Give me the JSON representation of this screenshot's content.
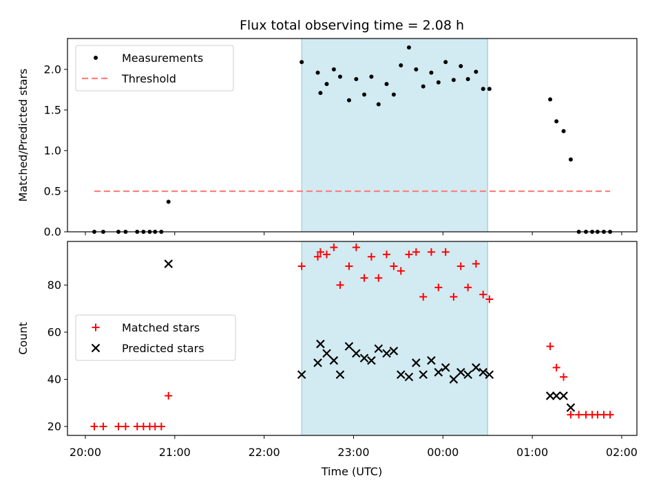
{
  "chart_data": {
    "title": "Flux total observing time = 2.08 h",
    "xlabel": "Time (UTC)",
    "xticks": [
      "20:00",
      "21:00",
      "22:00",
      "23:00",
      "00:00",
      "01:00",
      "02:00"
    ],
    "xrange_hours": [
      19.8,
      26.17
    ],
    "highlight_span_hours": [
      22.42,
      24.5
    ],
    "highlight_color": "#add8e6",
    "panels": [
      {
        "type": "scatter",
        "ylabel": "Matched/Predicted stars",
        "ylim": [
          0,
          2.38
        ],
        "yticks": [
          0.0,
          0.5,
          1.0,
          1.5,
          2.0
        ],
        "yticklabels": [
          "0.0",
          "0.5",
          "1.0",
          "1.5",
          "2.0"
        ],
        "legend_position": "upper left",
        "series": [
          {
            "name": "Measurements",
            "marker": "dot",
            "color": "#000000",
            "x": [
              20.1,
              20.2,
              20.37,
              20.45,
              20.58,
              20.65,
              20.72,
              20.78,
              20.85,
              20.93,
              22.42,
              22.6,
              22.63,
              22.7,
              22.78,
              22.85,
              22.95,
              23.03,
              23.12,
              23.2,
              23.28,
              23.37,
              23.45,
              23.53,
              23.62,
              23.7,
              23.78,
              23.87,
              23.95,
              24.03,
              24.12,
              24.2,
              24.28,
              24.37,
              24.45,
              24.52,
              25.2,
              25.27,
              25.35,
              25.43,
              25.52,
              25.6,
              25.67,
              25.73,
              25.8,
              25.87
            ],
            "y": [
              0,
              0,
              0,
              0,
              0,
              0,
              0,
              0,
              0,
              0.37,
              2.09,
              1.96,
              1.71,
              1.82,
              2.0,
              1.91,
              1.62,
              1.88,
              1.69,
              1.91,
              1.57,
              1.82,
              1.69,
              2.05,
              2.27,
              2.0,
              1.79,
              1.96,
              1.84,
              2.09,
              1.87,
              2.04,
              1.88,
              1.97,
              1.76,
              1.76,
              1.63,
              1.36,
              1.24,
              0.89,
              0,
              0,
              0,
              0,
              0,
              0
            ]
          },
          {
            "name": "Threshold",
            "marker": "dashed-line",
            "color": "#ff7f7f",
            "x": [
              20.1,
              25.87
            ],
            "y": [
              0.5,
              0.5
            ]
          }
        ]
      },
      {
        "type": "scatter",
        "ylabel": "Count",
        "ylim": [
          16.2,
          98.5
        ],
        "yticks": [
          20,
          40,
          60,
          80
        ],
        "yticklabels": [
          "20",
          "40",
          "60",
          "80"
        ],
        "legend_position": "center left",
        "series": [
          {
            "name": "Matched stars",
            "marker": "plus",
            "color": "#ff0000",
            "x": [
              20.1,
              20.2,
              20.37,
              20.45,
              20.58,
              20.65,
              20.72,
              20.78,
              20.85,
              20.93,
              22.42,
              22.6,
              22.63,
              22.7,
              22.78,
              22.85,
              22.95,
              23.03,
              23.12,
              23.2,
              23.28,
              23.37,
              23.45,
              23.53,
              23.62,
              23.7,
              23.78,
              23.87,
              23.95,
              24.03,
              24.12,
              24.2,
              24.28,
              24.37,
              24.45,
              24.52,
              25.2,
              25.27,
              25.35,
              25.43,
              25.52,
              25.6,
              25.67,
              25.73,
              25.8,
              25.87
            ],
            "y": [
              20,
              20,
              20,
              20,
              20,
              20,
              20,
              20,
              20,
              33,
              88,
              92,
              94,
              93,
              96,
              80,
              88,
              96,
              83,
              92,
              83,
              93,
              88,
              86,
              93,
              94,
              75,
              94,
              79,
              94,
              75,
              88,
              79,
              89,
              76,
              74,
              54,
              45,
              41,
              25,
              25,
              25,
              25,
              25,
              25,
              25
            ]
          },
          {
            "name": "Predicted stars",
            "marker": "x",
            "color": "#000000",
            "x": [
              20.93,
              22.42,
              22.6,
              22.63,
              22.7,
              22.78,
              22.85,
              22.95,
              23.03,
              23.12,
              23.2,
              23.28,
              23.37,
              23.45,
              23.53,
              23.62,
              23.7,
              23.78,
              23.87,
              23.95,
              24.03,
              24.12,
              24.2,
              24.28,
              24.37,
              24.45,
              24.52,
              25.2,
              25.27,
              25.35,
              25.43
            ],
            "y": [
              89,
              42,
              47,
              55,
              51,
              48,
              42,
              54,
              51,
              49,
              48,
              53,
              51,
              52,
              42,
              41,
              47,
              42,
              48,
              43,
              45,
              40,
              43,
              42,
              45,
              43,
              42,
              33,
              33,
              33,
              28
            ]
          }
        ]
      }
    ]
  }
}
